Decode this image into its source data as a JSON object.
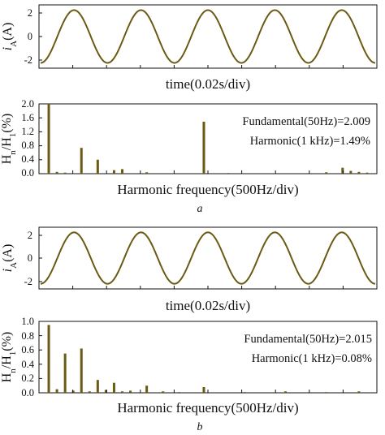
{
  "colors": {
    "trace": "#6b5a14",
    "axis": "#111111"
  },
  "panels": [
    {
      "label": "a",
      "waveform": {
        "type": "line",
        "ylabel_main": "i",
        "ylabel_sub": "A",
        "ylabel_unit": "(A)",
        "xlabel": "time(0.02s/div)",
        "yticks": [
          "2",
          "0",
          "-2"
        ],
        "ylim": [
          -2.4,
          2.4
        ],
        "amplitude": 2.0,
        "cycles": 5,
        "phase_deg": 270
      },
      "spectrum": {
        "type": "bar",
        "ylabel_main": "H",
        "ylabel_sub_n": "n",
        "ylabel_sep": "/H",
        "ylabel_sub_1": "1",
        "ylabel_unit": "(%)",
        "xlabel": "Harmonic frequency(500Hz/div)",
        "yticks": [
          "2.0",
          "1.6",
          "1.2",
          "0.8",
          "0.4",
          "0.0"
        ],
        "ylim": [
          0,
          2.0
        ],
        "harmonic_max": 41,
        "bars": [
          {
            "h": 1,
            "v": 2.0
          },
          {
            "h": 2,
            "v": 0.05
          },
          {
            "h": 3,
            "v": 0.03
          },
          {
            "h": 5,
            "v": 0.74
          },
          {
            "h": 7,
            "v": 0.4
          },
          {
            "h": 9,
            "v": 0.1
          },
          {
            "h": 10,
            "v": 0.13
          },
          {
            "h": 13,
            "v": 0.04
          },
          {
            "h": 20,
            "v": 1.49
          },
          {
            "h": 23,
            "v": 0.02
          },
          {
            "h": 35,
            "v": 0.04
          },
          {
            "h": 37,
            "v": 0.17
          },
          {
            "h": 38,
            "v": 0.08
          },
          {
            "h": 39,
            "v": 0.05
          },
          {
            "h": 40,
            "v": 0.03
          }
        ],
        "annotations": [
          "Fundamental(50Hz)=2.009",
          "Harmonic(1 kHz)=1.49%"
        ]
      }
    },
    {
      "label": "b",
      "waveform": {
        "type": "line",
        "ylabel_main": "i",
        "ylabel_sub": "A",
        "ylabel_unit": "(A)",
        "xlabel": "time(0.02s/div)",
        "yticks": [
          "2",
          "0",
          "-2"
        ],
        "ylim": [
          -2.4,
          2.4
        ],
        "amplitude": 2.0,
        "cycles": 5,
        "phase_deg": 270
      },
      "spectrum": {
        "type": "bar",
        "ylabel_main": "H",
        "ylabel_sub_n": "n",
        "ylabel_sep": "/H",
        "ylabel_sub_1": "1",
        "ylabel_unit": "(%)",
        "xlabel": "Harmonic frequency(500Hz/div)",
        "yticks": [
          "1.0",
          "0.8",
          "0.6",
          "0.4",
          "0.2",
          "0.0"
        ],
        "ylim": [
          0,
          1.0
        ],
        "harmonic_max": 41,
        "bars": [
          {
            "h": 1,
            "v": 0.95
          },
          {
            "h": 2,
            "v": 0.05
          },
          {
            "h": 3,
            "v": 0.55
          },
          {
            "h": 4,
            "v": 0.03
          },
          {
            "h": 5,
            "v": 0.62
          },
          {
            "h": 6,
            "v": 0.02
          },
          {
            "h": 7,
            "v": 0.18
          },
          {
            "h": 8,
            "v": 0.04
          },
          {
            "h": 9,
            "v": 0.14
          },
          {
            "h": 10,
            "v": 0.02
          },
          {
            "h": 11,
            "v": 0.03
          },
          {
            "h": 13,
            "v": 0.1
          },
          {
            "h": 15,
            "v": 0.02
          },
          {
            "h": 17,
            "v": 0.01
          },
          {
            "h": 20,
            "v": 0.08
          },
          {
            "h": 25,
            "v": 0.01
          },
          {
            "h": 30,
            "v": 0.02
          },
          {
            "h": 35,
            "v": 0.01
          },
          {
            "h": 39,
            "v": 0.02
          }
        ],
        "annotations": [
          "Fundamental(50Hz)=2.015",
          "Harmonic(1 kHz)=0.08%"
        ]
      }
    }
  ]
}
